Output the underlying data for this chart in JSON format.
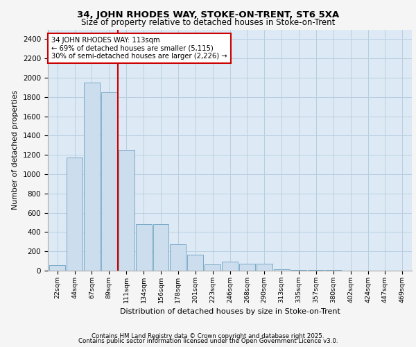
{
  "title1": "34, JOHN RHODES WAY, STOKE-ON-TRENT, ST6 5XA",
  "title2": "Size of property relative to detached houses in Stoke-on-Trent",
  "xlabel": "Distribution of detached houses by size in Stoke-on-Trent",
  "ylabel": "Number of detached properties",
  "bins": [
    "22sqm",
    "44sqm",
    "67sqm",
    "89sqm",
    "111sqm",
    "134sqm",
    "156sqm",
    "178sqm",
    "201sqm",
    "223sqm",
    "246sqm",
    "268sqm",
    "290sqm",
    "313sqm",
    "335sqm",
    "357sqm",
    "380sqm",
    "402sqm",
    "424sqm",
    "447sqm",
    "469sqm"
  ],
  "values": [
    55,
    1175,
    1950,
    1850,
    1250,
    480,
    480,
    270,
    165,
    65,
    95,
    75,
    75,
    15,
    8,
    5,
    4,
    2,
    1,
    1,
    1
  ],
  "bar_color": "#ccdded",
  "bar_edge_color": "#7aaac8",
  "vline_x": 3.5,
  "vline_color": "#cc0000",
  "annotation_text": "34 JOHN RHODES WAY: 113sqm\n← 69% of detached houses are smaller (5,115)\n30% of semi-detached houses are larger (2,226) →",
  "annotation_box_color": "#ffffff",
  "annotation_box_edge": "#cc0000",
  "ylim": [
    0,
    2500
  ],
  "yticks": [
    0,
    200,
    400,
    600,
    800,
    1000,
    1200,
    1400,
    1600,
    1800,
    2000,
    2200,
    2400
  ],
  "grid_color": "#b8cfe0",
  "bg_color": "#ddeaf5",
  "fig_bg_color": "#f5f5f5",
  "footer1": "Contains HM Land Registry data © Crown copyright and database right 2025.",
  "footer2": "Contains public sector information licensed under the Open Government Licence v3.0."
}
